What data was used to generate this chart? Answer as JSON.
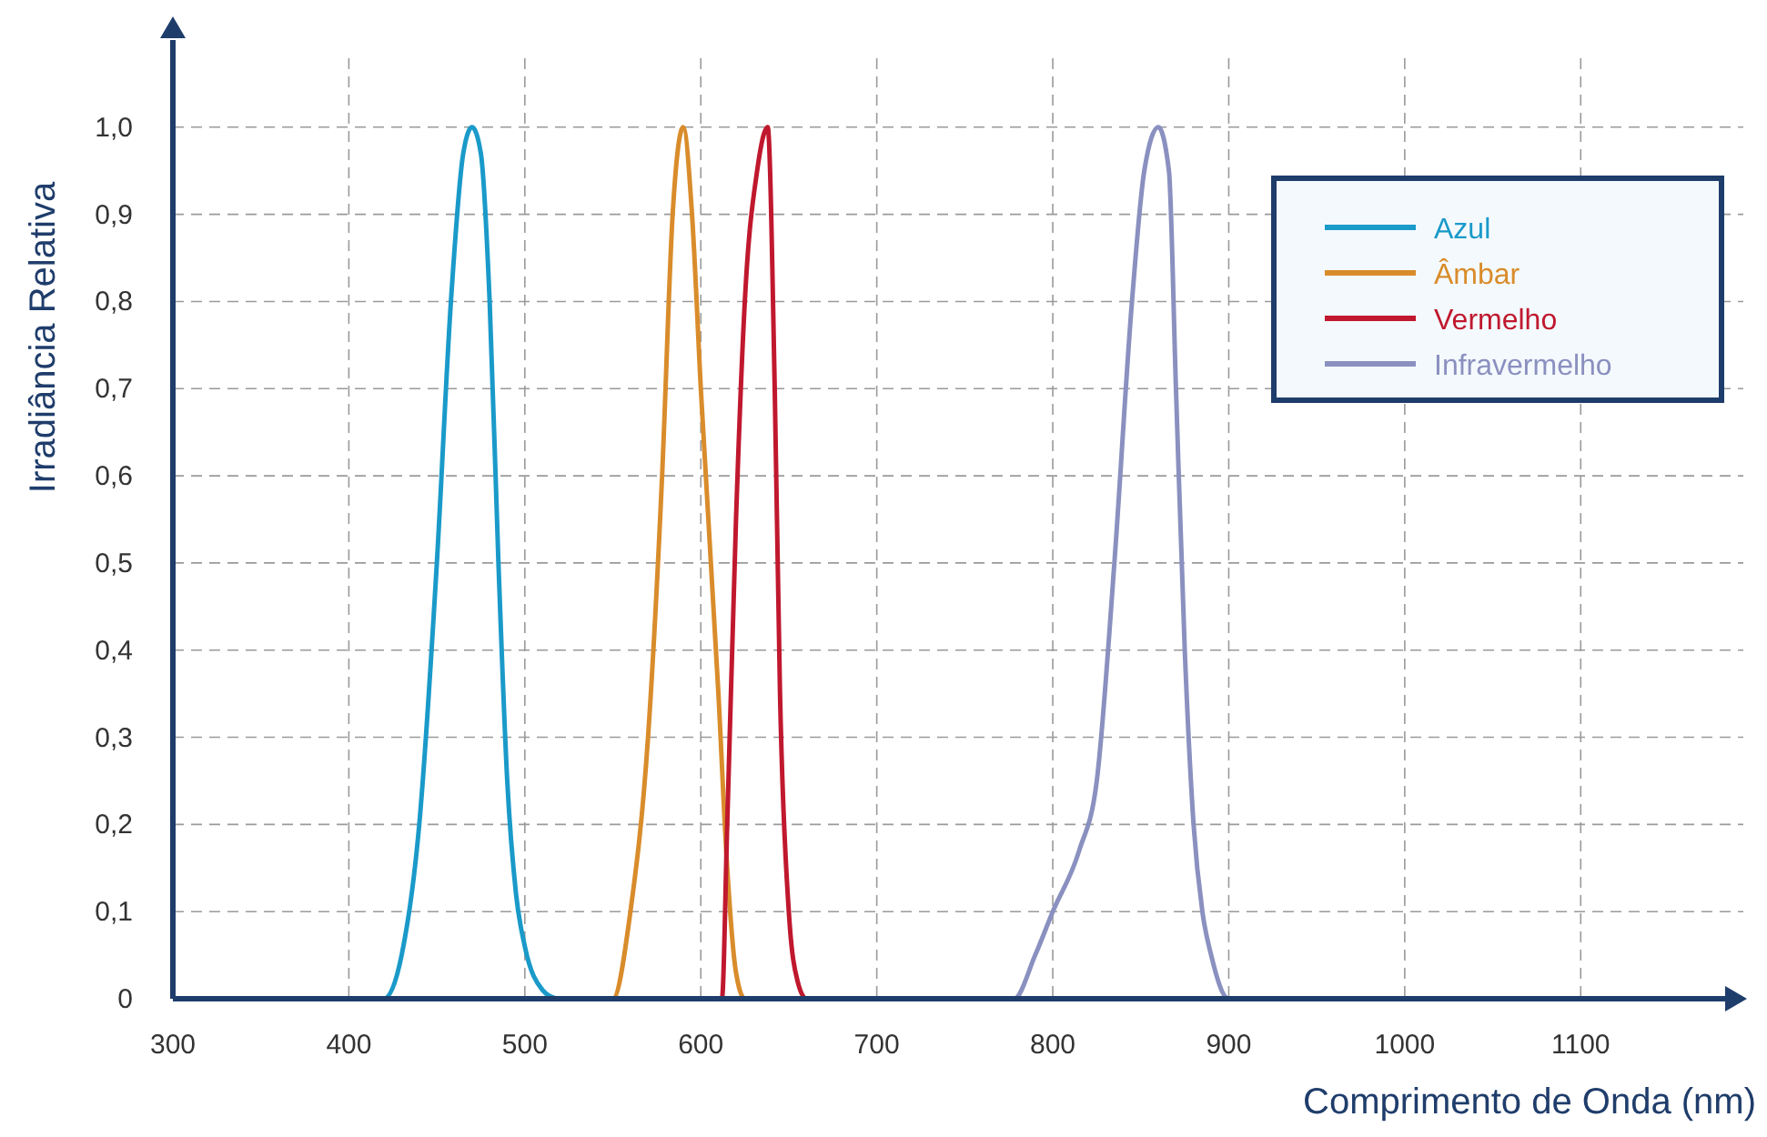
{
  "chart_data": {
    "type": "line",
    "xlabel": "Comprimento de Onda (nm)",
    "ylabel": "Irradiância Relativa",
    "xlim": [
      300,
      1180
    ],
    "ylim": [
      0,
      1.1
    ],
    "xticks": [
      300,
      400,
      500,
      600,
      700,
      800,
      900,
      1000,
      1100
    ],
    "yticks": [
      0,
      {
        "value": 0.1,
        "label": "0,1"
      },
      {
        "value": 0.2,
        "label": "0,2"
      },
      {
        "value": 0.3,
        "label": "0,3"
      },
      {
        "value": 0.4,
        "label": "0,4"
      },
      {
        "value": 0.5,
        "label": "0,5"
      },
      {
        "value": 0.6,
        "label": "0,6"
      },
      {
        "value": 0.7,
        "label": "0,7"
      },
      {
        "value": 0.8,
        "label": "0,8"
      },
      {
        "value": 0.9,
        "label": "0,9"
      },
      {
        "value": 1.0,
        "label": "1,0"
      }
    ],
    "grid": true,
    "legend": "top right",
    "line_style": "solid",
    "marker": "none",
    "series": [
      {
        "name": "Azul",
        "color": "#1a9ac9",
        "x": [
          370,
          420,
          430,
          440,
          450,
          458,
          465,
          470,
          475,
          480,
          485,
          490,
          495,
          500,
          510,
          518
        ],
        "values": [
          0,
          0,
          0.05,
          0.2,
          0.5,
          0.8,
          0.97,
          1,
          0.97,
          0.8,
          0.5,
          0.25,
          0.12,
          0.06,
          0.01,
          0
        ]
      },
      {
        "name": "Âmbar",
        "color": "#d98c2b",
        "x": [
          520,
          550,
          560,
          570,
          578,
          584,
          590,
          595,
          600,
          610,
          615,
          620,
          625,
          660
        ],
        "values": [
          0,
          0,
          0.1,
          0.3,
          0.6,
          0.9,
          1,
          0.9,
          0.7,
          0.35,
          0.15,
          0.03,
          0,
          0
        ]
      },
      {
        "name": "Vermelho",
        "color": "#c0182e",
        "x": [
          560,
          612,
          615,
          620,
          625,
          632,
          638,
          642,
          645,
          650,
          655,
          660,
          720
        ],
        "values": [
          0,
          0,
          0.2,
          0.55,
          0.8,
          0.95,
          1,
          0.7,
          0.35,
          0.1,
          0.02,
          0,
          0
        ]
      },
      {
        "name": "Infravermelho",
        "color": "#8a90bf",
        "x": [
          720,
          778,
          790,
          800,
          815,
          825,
          835,
          845,
          852,
          860,
          866,
          870,
          875,
          880,
          885,
          890,
          900,
          945
        ],
        "values": [
          0,
          0,
          0.05,
          0.1,
          0.17,
          0.25,
          0.5,
          0.8,
          0.95,
          1,
          0.95,
          0.7,
          0.4,
          0.2,
          0.1,
          0.05,
          0,
          0
        ]
      }
    ]
  }
}
